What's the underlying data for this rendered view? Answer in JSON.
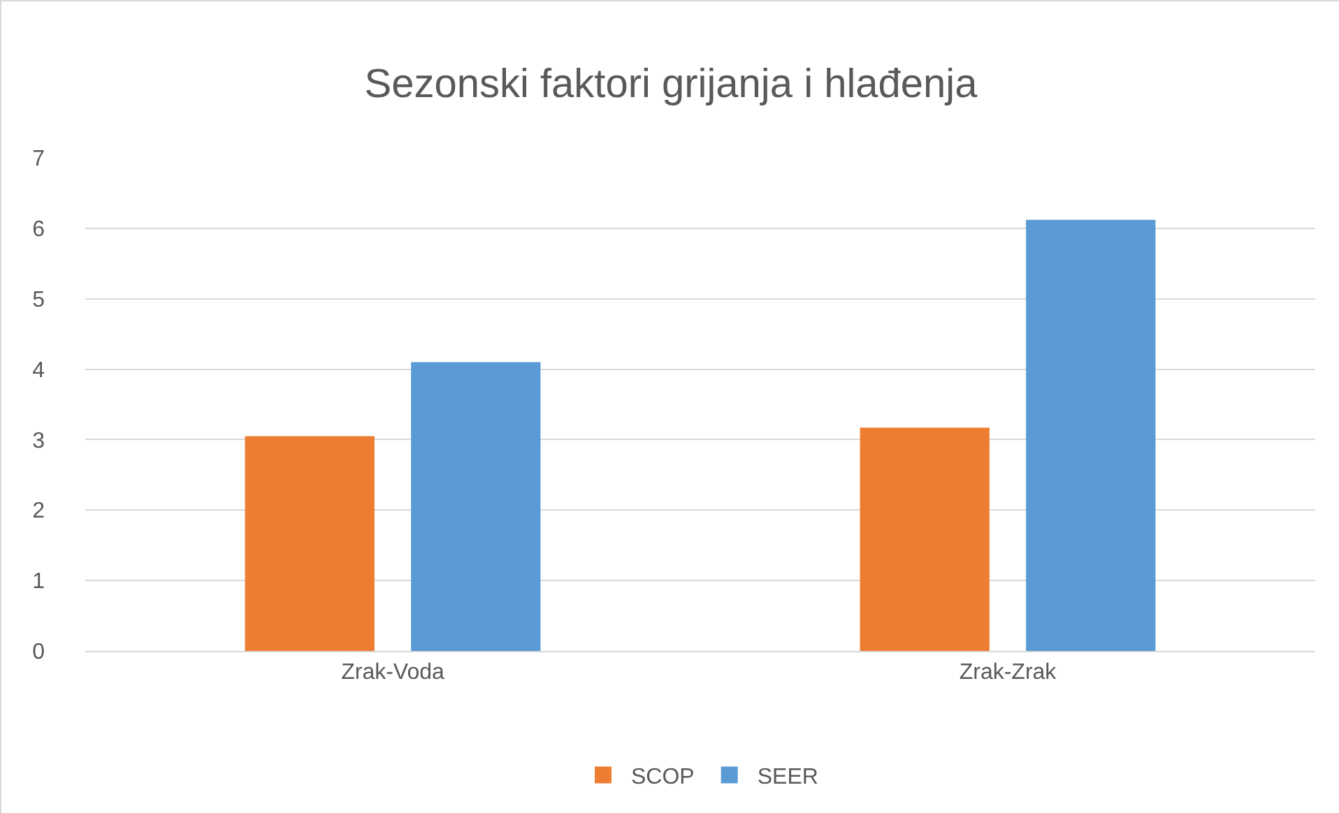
{
  "chart_data": {
    "type": "bar",
    "title": "Sezonski faktori grijanja i hlađenja",
    "categories": [
      "Zrak-Voda",
      "Zrak-Zrak"
    ],
    "series": [
      {
        "name": "SCOP",
        "color": "#ed7d31",
        "values": [
          3.05,
          3.17
        ]
      },
      {
        "name": "SEER",
        "color": "#5b9bd5",
        "values": [
          4.1,
          6.12
        ]
      }
    ],
    "ylim": [
      0,
      7
    ],
    "yticks": [
      0,
      1,
      2,
      3,
      4,
      5,
      6,
      7
    ],
    "grid": "y",
    "legend": "bottom"
  }
}
